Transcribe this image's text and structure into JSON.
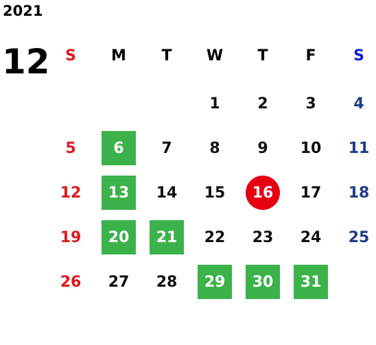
{
  "year": "2021",
  "month": "12",
  "weekdays": [
    "S",
    "M",
    "T",
    "W",
    "T",
    "F",
    "S"
  ],
  "weekday_colors": [
    "#e0191e",
    "#000000",
    "#000000",
    "#000000",
    "#000000",
    "#000000",
    "#0a1fd6"
  ],
  "day_colors": [
    "#e0191e",
    "#111111",
    "#111111",
    "#111111",
    "#111111",
    "#111111",
    "#1d3c8c"
  ],
  "box_color": "#3cb34a",
  "circle_color": "#e60012",
  "weeks": [
    [
      null,
      null,
      null,
      {
        "text": "1"
      },
      {
        "text": "2"
      },
      {
        "text": "3"
      },
      {
        "text": "4"
      }
    ],
    [
      {
        "text": "5"
      },
      {
        "text": "6",
        "mark": "box"
      },
      {
        "text": "7"
      },
      {
        "text": "8"
      },
      {
        "text": "9"
      },
      {
        "text": "10"
      },
      {
        "text": "11"
      }
    ],
    [
      {
        "text": "12"
      },
      {
        "text": "13",
        "mark": "box"
      },
      {
        "text": "14"
      },
      {
        "text": "15"
      },
      {
        "text": "16",
        "mark": "circle"
      },
      {
        "text": "17"
      },
      {
        "text": "18"
      }
    ],
    [
      {
        "text": "19"
      },
      {
        "text": "20",
        "mark": "box"
      },
      {
        "text": "21",
        "mark": "box"
      },
      {
        "text": "22"
      },
      {
        "text": "23"
      },
      {
        "text": "24"
      },
      {
        "text": "25"
      }
    ],
    [
      {
        "text": "26"
      },
      {
        "text": "27"
      },
      {
        "text": "28"
      },
      {
        "text": "29",
        "mark": "box"
      },
      {
        "text": "30",
        "mark": "box"
      },
      {
        "text": "31",
        "mark": "box"
      },
      null
    ]
  ]
}
